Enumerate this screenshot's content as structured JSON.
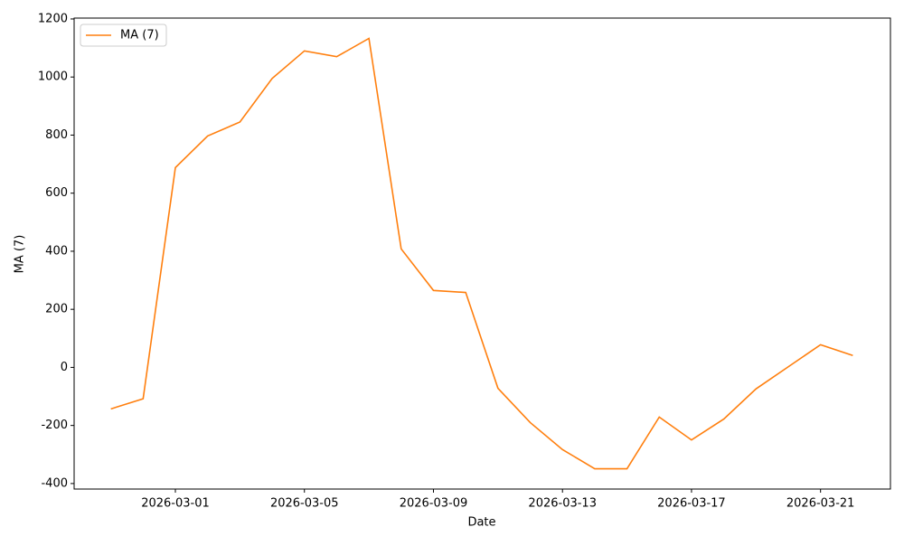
{
  "chart_data": {
    "type": "line",
    "xlabel": "Date",
    "ylabel": "MA (7)",
    "x": [
      "2026-02-27",
      "2026-02-28",
      "2026-03-01",
      "2026-03-02",
      "2026-03-03",
      "2026-03-04",
      "2026-03-05",
      "2026-03-06",
      "2026-03-07",
      "2026-03-08",
      "2026-03-09",
      "2026-03-10",
      "2026-03-11",
      "2026-03-12",
      "2026-03-13",
      "2026-03-14",
      "2026-03-15",
      "2026-03-16",
      "2026-03-17",
      "2026-03-18",
      "2026-03-19",
      "2026-03-20",
      "2026-03-21",
      "2026-03-22"
    ],
    "series": [
      {
        "name": "MA (7)",
        "color": "#ff7f0e",
        "values": [
          -143,
          -108,
          688,
          797,
          845,
          995,
          1090,
          1070,
          1133,
          408,
          265,
          258,
          -72,
          -190,
          -283,
          -349,
          -349,
          -171,
          -250,
          -178,
          -74,
          2,
          78,
          41
        ]
      }
    ],
    "xlim": [
      "2026-02-25T20:40:00Z",
      "2026-03-23T04:00:00Z"
    ],
    "xticks": [
      "2026-03-01",
      "2026-03-05",
      "2026-03-09",
      "2026-03-13",
      "2026-03-17",
      "2026-03-21"
    ],
    "ylim": [
      -419,
      1203
    ],
    "yticks": [
      -400,
      -200,
      0,
      200,
      400,
      600,
      800,
      1000,
      1200
    ],
    "legend": "upper left",
    "grid": false
  }
}
